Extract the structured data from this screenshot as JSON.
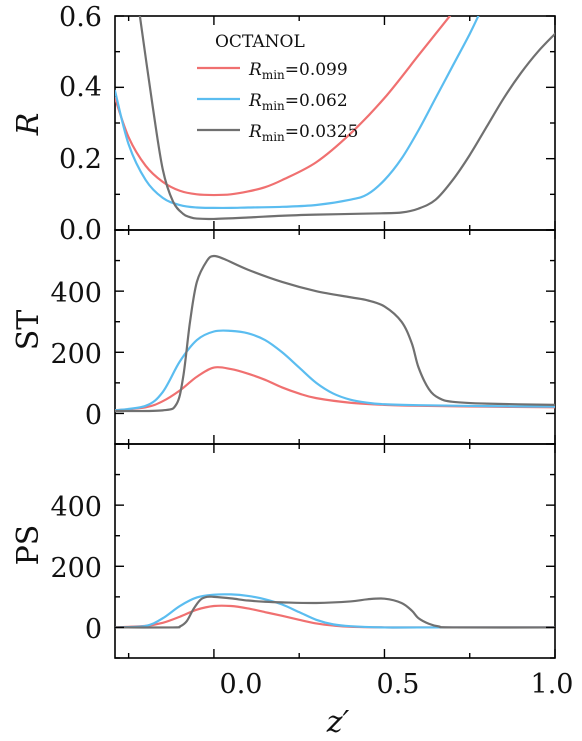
{
  "colors": {
    "red": "#f07070",
    "blue": "#5bbdf0",
    "gray": "#707070"
  },
  "chart_data": [
    {
      "type": "line",
      "panel": "R",
      "ylabel": "R",
      "xlim": [
        -0.29,
        1.0
      ],
      "ylim": [
        0.0,
        0.6
      ],
      "yticks": [
        0.0,
        0.2,
        0.4,
        0.6
      ],
      "ytick_labels": [
        "0.0",
        "0.2",
        "0.4",
        "0.6"
      ],
      "legend": {
        "title": "OCTANOL",
        "placement": "top-center",
        "entries": [
          {
            "prefix": "R",
            "sub": "min",
            "value": "=0.099",
            "color": "red"
          },
          {
            "prefix": "R",
            "sub": "min",
            "value": "=0.062",
            "color": "blue"
          },
          {
            "prefix": "R",
            "sub": "min",
            "value": "=0.0325",
            "color": "gray"
          }
        ]
      },
      "series": [
        {
          "name": "Rmin=0.099",
          "color": "red",
          "x": [
            -0.29,
            -0.25,
            -0.2,
            -0.15,
            -0.1,
            -0.05,
            0.0,
            0.05,
            0.1,
            0.15,
            0.2,
            0.3,
            0.4,
            0.5,
            0.6,
            0.65,
            0.7
          ],
          "y": [
            0.37,
            0.26,
            0.18,
            0.135,
            0.11,
            0.1,
            0.098,
            0.1,
            0.108,
            0.12,
            0.14,
            0.19,
            0.27,
            0.37,
            0.49,
            0.55,
            0.61
          ]
        },
        {
          "name": "Rmin=0.062",
          "color": "blue",
          "x": [
            -0.29,
            -0.25,
            -0.2,
            -0.15,
            -0.1,
            -0.05,
            0.0,
            0.05,
            0.1,
            0.2,
            0.3,
            0.4,
            0.45,
            0.5,
            0.55,
            0.6,
            0.65,
            0.7,
            0.75,
            0.78
          ],
          "y": [
            0.39,
            0.24,
            0.14,
            0.09,
            0.07,
            0.063,
            0.062,
            0.062,
            0.063,
            0.065,
            0.07,
            0.085,
            0.1,
            0.14,
            0.2,
            0.28,
            0.37,
            0.46,
            0.55,
            0.61
          ]
        },
        {
          "name": "Rmin=0.0325",
          "color": "gray",
          "x": [
            -0.22,
            -0.18,
            -0.15,
            -0.12,
            -0.09,
            -0.07,
            -0.05,
            0.0,
            0.1,
            0.2,
            0.3,
            0.4,
            0.5,
            0.55,
            0.6,
            0.65,
            0.7,
            0.75,
            0.8,
            0.85,
            0.9,
            0.95,
            1.0
          ],
          "y": [
            0.62,
            0.35,
            0.17,
            0.08,
            0.045,
            0.036,
            0.032,
            0.031,
            0.035,
            0.04,
            0.043,
            0.045,
            0.047,
            0.049,
            0.06,
            0.085,
            0.14,
            0.21,
            0.29,
            0.37,
            0.44,
            0.5,
            0.55
          ]
        }
      ]
    },
    {
      "type": "line",
      "panel": "ST",
      "ylabel": "ST",
      "xlim": [
        -0.29,
        1.0
      ],
      "ylim": [
        -100,
        600
      ],
      "yticks": [
        0,
        200,
        400
      ],
      "ytick_labels": [
        "0",
        "200",
        "400"
      ],
      "series": [
        {
          "name": "Rmin=0.099",
          "color": "red",
          "x": [
            -0.29,
            -0.2,
            -0.15,
            -0.1,
            -0.05,
            0.0,
            0.05,
            0.1,
            0.15,
            0.2,
            0.25,
            0.3,
            0.4,
            0.5,
            0.6,
            0.8,
            1.0
          ],
          "y": [
            10,
            20,
            40,
            75,
            120,
            150,
            145,
            130,
            110,
            85,
            65,
            50,
            35,
            28,
            25,
            22,
            20
          ]
        },
        {
          "name": "Rmin=0.062",
          "color": "blue",
          "x": [
            -0.29,
            -0.2,
            -0.15,
            -0.1,
            -0.05,
            0.0,
            0.05,
            0.1,
            0.15,
            0.2,
            0.25,
            0.3,
            0.35,
            0.4,
            0.45,
            0.5,
            0.6,
            0.8,
            1.0
          ],
          "y": [
            10,
            25,
            70,
            170,
            240,
            268,
            270,
            262,
            240,
            200,
            150,
            100,
            65,
            45,
            35,
            30,
            27,
            24,
            22
          ]
        },
        {
          "name": "Rmin=0.0325",
          "color": "gray",
          "x": [
            -0.29,
            -0.15,
            -0.11,
            -0.09,
            -0.07,
            -0.05,
            -0.02,
            0.0,
            0.03,
            0.1,
            0.2,
            0.3,
            0.4,
            0.45,
            0.5,
            0.55,
            0.58,
            0.6,
            0.63,
            0.66,
            0.7,
            0.8,
            1.0
          ],
          "y": [
            8,
            10,
            30,
            120,
            300,
            430,
            500,
            515,
            505,
            470,
            430,
            400,
            380,
            370,
            350,
            300,
            230,
            150,
            80,
            50,
            38,
            32,
            28
          ]
        }
      ]
    },
    {
      "type": "line",
      "panel": "PS",
      "ylabel": "PS",
      "xlabel": "z′",
      "xlim": [
        -0.29,
        1.0
      ],
      "ylim": [
        -100,
        600
      ],
      "xticks": [
        0.0,
        0.5,
        1.0
      ],
      "xtick_labels": [
        "0.0",
        "0.5",
        "1.0"
      ],
      "yticks": [
        0,
        200,
        400
      ],
      "ytick_labels": [
        "0",
        "200",
        "400"
      ],
      "series": [
        {
          "name": "Rmin=0.099",
          "color": "red",
          "x": [
            -0.29,
            -0.2,
            -0.15,
            -0.1,
            -0.05,
            0.0,
            0.05,
            0.1,
            0.15,
            0.2,
            0.25,
            0.3,
            0.35,
            0.4,
            0.5,
            0.6,
            1.0
          ],
          "y": [
            0,
            5,
            15,
            35,
            58,
            70,
            70,
            62,
            50,
            38,
            25,
            13,
            6,
            2,
            0,
            0,
            0
          ]
        },
        {
          "name": "Rmin=0.062",
          "color": "blue",
          "x": [
            -0.29,
            -0.2,
            -0.15,
            -0.1,
            -0.05,
            0.0,
            0.05,
            0.1,
            0.15,
            0.2,
            0.25,
            0.3,
            0.35,
            0.4,
            0.5,
            0.6,
            1.0
          ],
          "y": [
            0,
            5,
            30,
            70,
            98,
            107,
            108,
            103,
            92,
            75,
            50,
            25,
            10,
            4,
            0,
            0,
            0
          ]
        },
        {
          "name": "Rmin=0.0325",
          "color": "gray",
          "x": [
            -0.29,
            -0.12,
            -0.1,
            -0.08,
            -0.06,
            -0.04,
            -0.02,
            0.0,
            0.05,
            0.1,
            0.15,
            0.2,
            0.3,
            0.4,
            0.45,
            0.5,
            0.55,
            0.58,
            0.6,
            0.63,
            0.66,
            0.7,
            1.0
          ],
          "y": [
            0,
            0,
            3,
            20,
            60,
            90,
            100,
            100,
            95,
            88,
            84,
            82,
            80,
            85,
            92,
            94,
            80,
            55,
            30,
            12,
            3,
            0,
            0
          ]
        }
      ]
    }
  ]
}
